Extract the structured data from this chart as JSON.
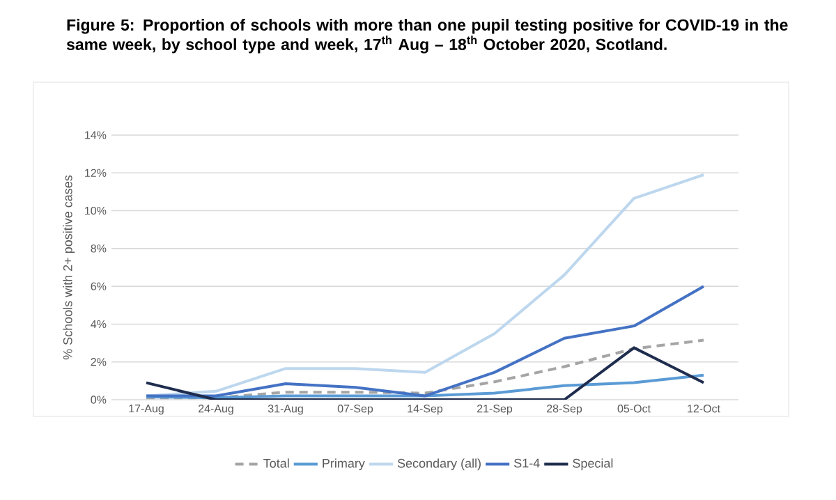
{
  "chart_data": {
    "type": "line",
    "title": "Figure 5: Proportion of schools with more than one pupil testing positive for COVID-19 in the same week, by school type and week, 17$^{th}$ Aug – 18$^{th}$ October 2020, Scotland.",
    "ylabel": "% Schools with 2+ positive cases",
    "categories": [
      "17-Aug",
      "24-Aug",
      "31-Aug",
      "07-Sep",
      "14-Sep",
      "21-Sep",
      "28-Sep",
      "05-Oct",
      "12-Oct"
    ],
    "series": [
      {
        "name": "Total",
        "color": "#a5a5a5",
        "line_style": "dashed",
        "values": [
          0.1,
          0.1,
          0.4,
          0.4,
          0.35,
          0.95,
          1.75,
          2.7,
          3.15
        ]
      },
      {
        "name": "Primary",
        "color": "#5b9bd5",
        "values": [
          0.15,
          0.1,
          0.2,
          0.2,
          0.2,
          0.35,
          0.75,
          0.9,
          1.3
        ]
      },
      {
        "name": "Secondary (all)",
        "color": "#bdd7ee",
        "values": [
          0.2,
          0.45,
          1.65,
          1.65,
          1.45,
          3.5,
          6.6,
          10.65,
          11.9
        ]
      },
      {
        "name": "S1-4",
        "color": "#4472c4",
        "values": [
          0.2,
          0.2,
          0.85,
          0.65,
          0.2,
          1.45,
          3.25,
          3.9,
          6.0
        ]
      },
      {
        "name": "Special",
        "color": "#1f2d4e",
        "values": [
          0.9,
          0.0,
          0.0,
          0.0,
          0.0,
          0.0,
          0.0,
          2.75,
          0.9
        ]
      }
    ],
    "ylim": [
      0,
      14
    ],
    "yticks": [
      {
        "value": 0,
        "label": "0%"
      },
      {
        "value": 2,
        "label": "2%"
      },
      {
        "value": 4,
        "label": "4%"
      },
      {
        "value": 6,
        "label": "6%"
      },
      {
        "value": 8,
        "label": "8%"
      },
      {
        "value": 10,
        "label": "10%"
      },
      {
        "value": 12,
        "label": "12%"
      },
      {
        "value": 14,
        "label": "14%"
      }
    ],
    "grid": "y",
    "legend": "bottom",
    "marker": "none",
    "line_style": "solid"
  }
}
